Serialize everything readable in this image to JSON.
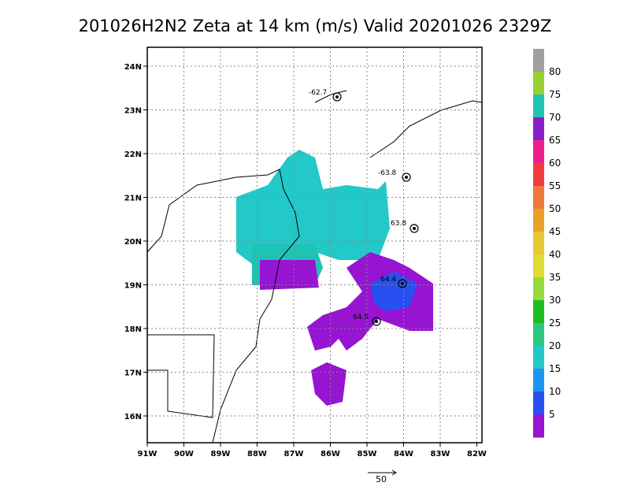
{
  "title": "201026H2N2 Zeta at 14 km (m/s) Valid 20201026 2329Z",
  "lat_labels": [
    "24N",
    "23N",
    "22N",
    "21N",
    "20N",
    "19N",
    "18N",
    "17N",
    "16N"
  ],
  "lon_labels": [
    "91W",
    "90W",
    "89W",
    "88W",
    "87W",
    "86W",
    "85W",
    "84W",
    "83W",
    "82W"
  ],
  "colorbar": {
    "labels": [
      "80",
      "75",
      "70",
      "65",
      "60",
      "55",
      "50",
      "45",
      "40",
      "35",
      "30",
      "25",
      "20",
      "15",
      "10",
      "5"
    ],
    "colors": [
      "#a0a0a0",
      "#96d232",
      "#1ec3b4",
      "#8c1ec8",
      "#f01e8c",
      "#f03c3c",
      "#f0783c",
      "#eba028",
      "#e6c832",
      "#dcdc32",
      "#96dc3c",
      "#1ebe1e",
      "#28c882",
      "#23c8c8",
      "#1e96f0",
      "#2850f0",
      "#9614d2"
    ]
  },
  "annotations": [
    "-62.7",
    "-63.8",
    "63.8",
    "64.4",
    "64.5"
  ],
  "scale_label": "50"
}
